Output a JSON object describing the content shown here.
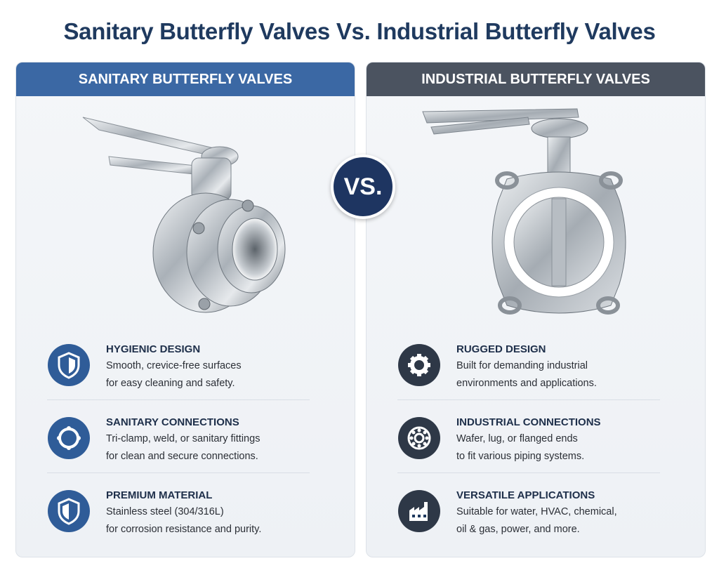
{
  "title": "Sanitary Butterfly Valves Vs. Industrial Butterfly Valves",
  "vs": "VS.",
  "panels": [
    {
      "header": "SANITARY BUTTERFLY VALVES",
      "features": [
        {
          "title": "HYGIENIC DESIGN",
          "lines": [
            "Smooth, crevice-free surfaces",
            "for easy cleaning and safety."
          ]
        },
        {
          "title": "SANITARY CONNECTIONS",
          "lines": [
            "Tri-clamp, weld, or sanitary fittings",
            "for clean and secure connections."
          ]
        },
        {
          "title": "PREMIUM MATERIAL",
          "lines": [
            "Stainless steel (304/316L)",
            "for corrosion resistance and purity."
          ]
        }
      ]
    },
    {
      "header": "INDUSTRIAL BUTTERFLY VALVES",
      "features": [
        {
          "title": "RUGGED DESIGN",
          "lines": [
            "Built for demanding industrial",
            "environments and applications."
          ]
        },
        {
          "title": "INDUSTRIAL CONNECTIONS",
          "lines": [
            "Wafer, lug, or flanged ends",
            "to fit various piping systems."
          ]
        },
        {
          "title": "VERSATILE APPLICATIONS",
          "lines": [
            "Suitable for water, HVAC, chemical,",
            "oil & gas, power, and more."
          ]
        }
      ]
    }
  ]
}
